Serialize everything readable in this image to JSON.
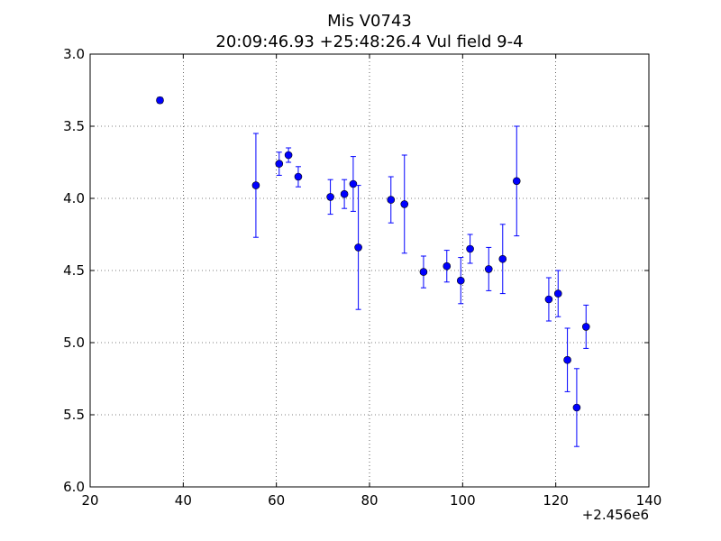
{
  "chart_data": {
    "type": "scatter",
    "title_lines": [
      "Mis V0743",
      "20:09:46.93 +25:48:26.4 Vul field 9-4"
    ],
    "xlabel": "",
    "ylabel": "",
    "x_offset_label": "+2.456e6",
    "xlim": [
      20,
      140
    ],
    "ylim": [
      3.0,
      6.0
    ],
    "y_inverted": true,
    "x_ticks": [
      20,
      40,
      60,
      80,
      100,
      120,
      140
    ],
    "x_tick_labels": [
      "20",
      "40",
      "60",
      "80",
      "100",
      "120",
      "140"
    ],
    "y_ticks": [
      3.0,
      3.5,
      4.0,
      4.5,
      5.0,
      5.5,
      6.0
    ],
    "y_tick_labels": [
      "3.0",
      "3.5",
      "4.0",
      "4.5",
      "5.0",
      "5.5",
      "6.0"
    ],
    "grid": true,
    "marker_color": "#0000ff",
    "series": [
      {
        "points": [
          {
            "x": 2456035.0,
            "y": 3.32,
            "err": 0.02
          },
          {
            "x": 2456055.6,
            "y": 3.91,
            "err": 0.36
          },
          {
            "x": 2456060.6,
            "y": 3.76,
            "err": 0.08
          },
          {
            "x": 2456062.6,
            "y": 3.7,
            "err": 0.05
          },
          {
            "x": 2456064.7,
            "y": 3.85,
            "err": 0.07
          },
          {
            "x": 2456071.6,
            "y": 3.99,
            "err": 0.12
          },
          {
            "x": 2456074.6,
            "y": 3.97,
            "err": 0.1
          },
          {
            "x": 2456076.5,
            "y": 3.9,
            "err": 0.19
          },
          {
            "x": 2456077.6,
            "y": 4.34,
            "err": 0.43
          },
          {
            "x": 2456084.6,
            "y": 4.01,
            "err": 0.16
          },
          {
            "x": 2456087.5,
            "y": 4.04,
            "err": 0.34
          },
          {
            "x": 2456091.6,
            "y": 4.51,
            "err": 0.11
          },
          {
            "x": 2456096.6,
            "y": 4.47,
            "err": 0.11
          },
          {
            "x": 2456099.6,
            "y": 4.57,
            "err": 0.16
          },
          {
            "x": 2456101.6,
            "y": 4.35,
            "err": 0.1
          },
          {
            "x": 2456105.6,
            "y": 4.49,
            "err": 0.15
          },
          {
            "x": 2456108.6,
            "y": 4.42,
            "err": 0.24
          },
          {
            "x": 2456111.6,
            "y": 3.88,
            "err": 0.38
          },
          {
            "x": 2456118.5,
            "y": 4.7,
            "err": 0.15
          },
          {
            "x": 2456120.5,
            "y": 4.66,
            "err": 0.16
          },
          {
            "x": 2456122.5,
            "y": 5.12,
            "err": 0.22
          },
          {
            "x": 2456124.5,
            "y": 5.45,
            "err": 0.27
          },
          {
            "x": 2456126.5,
            "y": 4.89,
            "err": 0.15
          }
        ]
      }
    ]
  }
}
